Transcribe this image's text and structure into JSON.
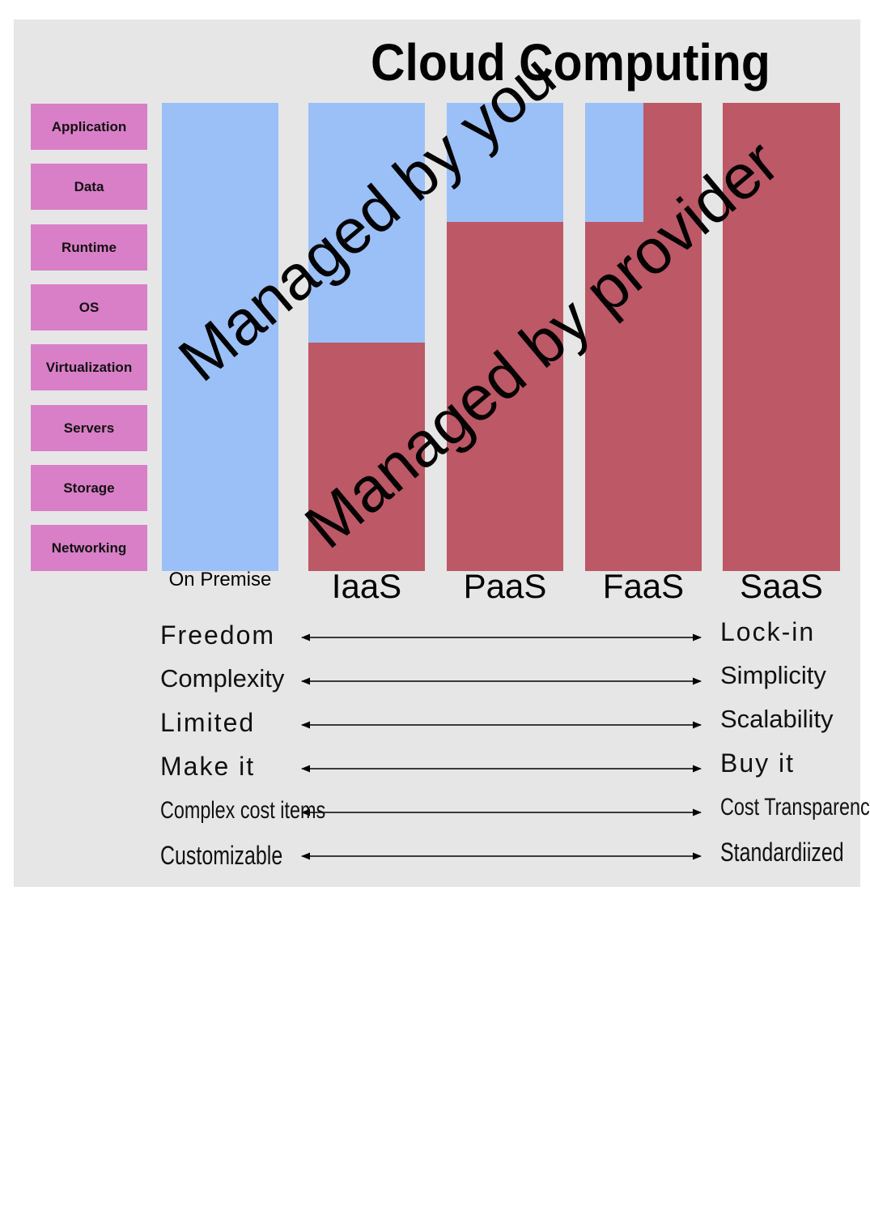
{
  "title": "Cloud Computing",
  "layers": [
    "Application",
    "Data",
    "Runtime",
    "OS",
    "Virtualization",
    "Servers",
    "Storage",
    "Networking"
  ],
  "columns": [
    {
      "name": "On Premise",
      "managed_by_you_fraction": 1.0
    },
    {
      "name": "IaaS",
      "managed_by_you_fraction": 0.5
    },
    {
      "name": "PaaS",
      "managed_by_you_fraction": 0.25
    },
    {
      "name": "FaaS",
      "managed_by_you_fraction": 0.25,
      "note_blue_partial_width": true
    },
    {
      "name": "SaaS",
      "managed_by_you_fraction": 0.0
    }
  ],
  "overlay": {
    "you": "Managed by you",
    "provider": "Managed by provider"
  },
  "colors": {
    "you": "#9bc0f8",
    "provider": "#bd5866",
    "layer": "#d97fc8",
    "panel": "#e6e6e6"
  },
  "spectrum": [
    {
      "left": "Freedom",
      "right": "Lock-in"
    },
    {
      "left": "Complexity",
      "right": "Simplicity"
    },
    {
      "left": "Limited",
      "right": "Scalability"
    },
    {
      "left": "Make it",
      "right": "Buy it"
    },
    {
      "left": "Complex cost items",
      "right": "Cost Transparency"
    },
    {
      "left": "Customizable",
      "right": "Standardiized"
    }
  ]
}
